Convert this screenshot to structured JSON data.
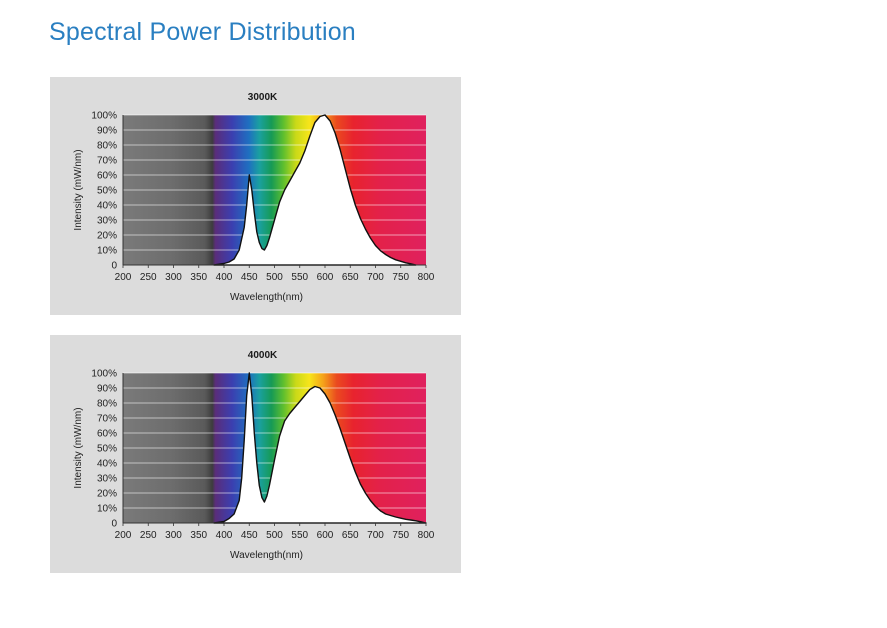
{
  "page": {
    "title": "Spectral Power Distribution"
  },
  "chart_data": [
    {
      "type": "area",
      "title": "3000K",
      "xlabel": "Wavelength(nm)",
      "ylabel": "Intensity (mW/nm)",
      "xlim": [
        200,
        800
      ],
      "ylim": [
        0,
        100
      ],
      "x_ticks": [
        "200",
        "250",
        "300",
        "350",
        "400",
        "450",
        "500",
        "550",
        "600",
        "650",
        "700",
        "750",
        "800"
      ],
      "y_ticks": [
        "0",
        "10%",
        "20%",
        "30%",
        "40%",
        "50%",
        "60%",
        "70%",
        "80%",
        "90%",
        "100%"
      ],
      "grid": true,
      "x": [
        380,
        400,
        410,
        420,
        430,
        440,
        445,
        450,
        455,
        460,
        465,
        470,
        475,
        480,
        485,
        490,
        500,
        510,
        520,
        530,
        540,
        550,
        560,
        570,
        580,
        590,
        600,
        610,
        620,
        630,
        640,
        650,
        660,
        670,
        680,
        690,
        700,
        710,
        720,
        730,
        740,
        750,
        760,
        770,
        780
      ],
      "values": [
        0,
        1,
        2,
        4,
        10,
        25,
        40,
        60,
        50,
        35,
        22,
        15,
        11,
        10,
        13,
        18,
        30,
        42,
        50,
        56,
        62,
        68,
        76,
        86,
        95,
        99,
        100,
        96,
        88,
        77,
        64,
        51,
        40,
        31,
        24,
        18,
        13,
        9.5,
        7,
        5,
        3.5,
        2.5,
        1.5,
        0.8,
        0
      ]
    },
    {
      "type": "area",
      "title": "4000K",
      "xlabel": "Wavelength(nm)",
      "ylabel": "Intensity (mW/nm)",
      "xlim": [
        200,
        800
      ],
      "ylim": [
        0,
        100
      ],
      "x_ticks": [
        "200",
        "250",
        "300",
        "350",
        "400",
        "450",
        "500",
        "550",
        "600",
        "650",
        "700",
        "750",
        "800"
      ],
      "y_ticks": [
        "0",
        "10%",
        "20%",
        "30%",
        "40%",
        "50%",
        "60%",
        "70%",
        "80%",
        "90%",
        "100%"
      ],
      "grid": true,
      "x": [
        380,
        400,
        410,
        420,
        430,
        435,
        440,
        445,
        450,
        455,
        460,
        465,
        470,
        475,
        480,
        485,
        490,
        500,
        510,
        520,
        530,
        540,
        550,
        560,
        570,
        580,
        590,
        600,
        610,
        620,
        630,
        640,
        650,
        660,
        670,
        680,
        690,
        700,
        710,
        720,
        730,
        740,
        750,
        760,
        770,
        780,
        790,
        800
      ],
      "values": [
        0,
        1,
        3,
        6,
        15,
        30,
        55,
        85,
        100,
        85,
        60,
        40,
        25,
        17,
        14,
        18,
        25,
        42,
        58,
        68,
        73,
        77,
        81,
        85,
        89,
        91,
        90,
        86,
        80,
        72,
        63,
        53,
        43,
        34,
        26,
        20,
        15,
        11,
        8,
        6,
        5,
        4,
        3.2,
        2.5,
        2,
        1.5,
        0.8,
        0
      ]
    }
  ]
}
